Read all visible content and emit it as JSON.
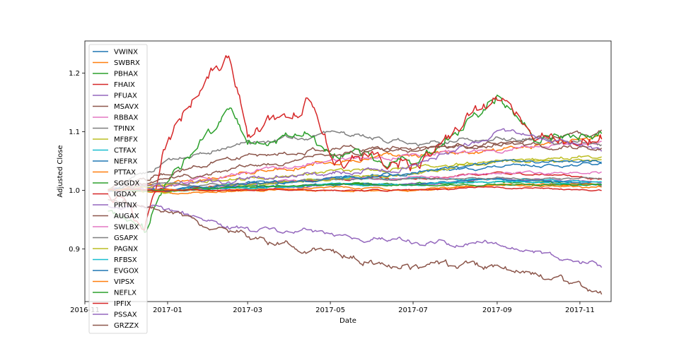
{
  "chart_data": {
    "type": "line",
    "title": "",
    "xlabel": "Date",
    "ylabel": "Adjusted Close",
    "x_start": "2016-11-18",
    "x_end": "2017-11-17",
    "x_range": [
      "2016-11-01",
      "2017-11-24"
    ],
    "ylim": [
      0.81,
      1.255
    ],
    "x_ticks": [
      {
        "date": "2016-11-01",
        "label": "2016-11"
      },
      {
        "date": "2017-01-01",
        "label": "2017-01"
      },
      {
        "date": "2017-03-01",
        "label": "2017-03"
      },
      {
        "date": "2017-05-01",
        "label": "2017-05"
      },
      {
        "date": "2017-07-01",
        "label": "2017-07"
      },
      {
        "date": "2017-09-01",
        "label": "2017-09"
      },
      {
        "date": "2017-11-01",
        "label": "2017-11"
      }
    ],
    "y_ticks": [
      0.9,
      1.0,
      1.1,
      1.2
    ],
    "y_tick_labels": [
      "0.9",
      "1.0",
      "1.1",
      "1.2"
    ],
    "grid": false,
    "legend_position": "upper-left",
    "series": [
      {
        "name": "VWINX",
        "color": "#1f77b4",
        "points": [
          [
            "2016-11-18",
            1.0
          ],
          [
            "2017-01-01",
            1.0
          ],
          [
            "2017-03-01",
            1.01
          ],
          [
            "2017-05-01",
            1.02
          ],
          [
            "2017-07-01",
            1.03
          ],
          [
            "2017-09-01",
            1.04
          ],
          [
            "2017-11-17",
            1.045
          ]
        ]
      },
      {
        "name": "SWBRX",
        "color": "#ff7f0e",
        "points": [
          [
            "2016-11-18",
            1.0
          ],
          [
            "2017-01-01",
            1.01
          ],
          [
            "2017-03-01",
            1.03
          ],
          [
            "2017-05-01",
            1.05
          ],
          [
            "2017-07-01",
            1.06
          ],
          [
            "2017-09-01",
            1.07
          ],
          [
            "2017-11-17",
            1.09
          ]
        ]
      },
      {
        "name": "PBHAX",
        "color": "#2ca02c",
        "points": [
          [
            "2016-11-18",
            1.0
          ],
          [
            "2017-01-01",
            1.0
          ],
          [
            "2017-03-01",
            1.005
          ],
          [
            "2017-05-01",
            1.01
          ],
          [
            "2017-07-01",
            1.01
          ],
          [
            "2017-09-01",
            1.015
          ],
          [
            "2017-11-17",
            1.01
          ]
        ]
      },
      {
        "name": "FHAIX",
        "color": "#d62728",
        "points": [
          [
            "2016-11-18",
            1.0
          ],
          [
            "2017-01-01",
            1.0
          ],
          [
            "2017-03-01",
            1.01
          ],
          [
            "2017-05-01",
            1.02
          ],
          [
            "2017-07-01",
            1.02
          ],
          [
            "2017-09-01",
            1.03
          ],
          [
            "2017-11-17",
            1.02
          ]
        ]
      },
      {
        "name": "PFUAX",
        "color": "#9467bd",
        "points": [
          [
            "2016-11-18",
            1.0
          ],
          [
            "2017-01-01",
            1.0
          ],
          [
            "2017-03-01",
            1.0
          ],
          [
            "2017-05-01",
            1.01
          ],
          [
            "2017-07-01",
            1.01
          ],
          [
            "2017-09-01",
            1.02
          ],
          [
            "2017-11-17",
            1.015
          ]
        ]
      },
      {
        "name": "MSAVX",
        "color": "#8c564b",
        "points": [
          [
            "2016-11-18",
            1.0
          ],
          [
            "2017-01-01",
            1.03
          ],
          [
            "2017-03-01",
            1.06
          ],
          [
            "2017-05-01",
            1.07
          ],
          [
            "2017-07-01",
            1.07
          ],
          [
            "2017-09-01",
            1.08
          ],
          [
            "2017-11-17",
            1.1
          ]
        ]
      },
      {
        "name": "RBBAX",
        "color": "#e377c2",
        "points": [
          [
            "2016-11-18",
            1.0
          ],
          [
            "2017-01-01",
            1.01
          ],
          [
            "2017-03-01",
            1.03
          ],
          [
            "2017-05-01",
            1.05
          ],
          [
            "2017-07-01",
            1.06
          ],
          [
            "2017-09-01",
            1.07
          ],
          [
            "2017-11-17",
            1.08
          ]
        ]
      },
      {
        "name": "TPINX",
        "color": "#7f7f7f",
        "points": [
          [
            "2016-11-18",
            1.0
          ],
          [
            "2017-01-01",
            1.05
          ],
          [
            "2017-03-01",
            1.08
          ],
          [
            "2017-05-01",
            1.1
          ],
          [
            "2017-07-01",
            1.08
          ],
          [
            "2017-09-01",
            1.09
          ],
          [
            "2017-11-17",
            1.08
          ]
        ]
      },
      {
        "name": "MFBFX",
        "color": "#bcbd22",
        "points": [
          [
            "2016-11-18",
            1.0
          ],
          [
            "2017-01-01",
            1.01
          ],
          [
            "2017-03-01",
            1.02
          ],
          [
            "2017-05-01",
            1.03
          ],
          [
            "2017-07-01",
            1.04
          ],
          [
            "2017-09-01",
            1.05
          ],
          [
            "2017-11-17",
            1.06
          ]
        ]
      },
      {
        "name": "CTFAX",
        "color": "#17becf",
        "points": [
          [
            "2016-11-18",
            1.0
          ],
          [
            "2017-01-01",
            1.0
          ],
          [
            "2017-03-01",
            1.01
          ],
          [
            "2017-05-01",
            1.02
          ],
          [
            "2017-07-01",
            1.02
          ],
          [
            "2017-09-01",
            1.02
          ],
          [
            "2017-11-17",
            1.015
          ]
        ]
      },
      {
        "name": "NEFRX",
        "color": "#1f77b4",
        "points": [
          [
            "2016-11-18",
            1.0
          ],
          [
            "2017-01-01",
            1.0
          ],
          [
            "2017-03-01",
            1.005
          ],
          [
            "2017-05-01",
            1.01
          ],
          [
            "2017-07-01",
            1.01
          ],
          [
            "2017-09-01",
            1.02
          ],
          [
            "2017-11-17",
            1.01
          ]
        ]
      },
      {
        "name": "PTTAX",
        "color": "#ff7f0e",
        "points": [
          [
            "2016-11-18",
            1.0
          ],
          [
            "2017-01-01",
            0.995
          ],
          [
            "2017-03-01",
            1.0
          ],
          [
            "2017-05-01",
            1.005
          ],
          [
            "2017-07-01",
            1.0
          ],
          [
            "2017-09-01",
            1.01
          ],
          [
            "2017-11-17",
            1.005
          ]
        ]
      },
      {
        "name": "SGGDX",
        "color": "#2ca02c",
        "points": [
          [
            "2016-11-18",
            0.97
          ],
          [
            "2016-12-15",
            0.93
          ],
          [
            "2017-01-01",
            1.02
          ],
          [
            "2017-02-01",
            1.1
          ],
          [
            "2017-02-15",
            1.14
          ],
          [
            "2017-03-01",
            1.08
          ],
          [
            "2017-04-15",
            1.1
          ],
          [
            "2017-05-01",
            1.06
          ],
          [
            "2017-07-01",
            1.05
          ],
          [
            "2017-09-01",
            1.16
          ],
          [
            "2017-10-01",
            1.09
          ],
          [
            "2017-11-17",
            1.1
          ]
        ]
      },
      {
        "name": "IGDAX",
        "color": "#d62728",
        "points": [
          [
            "2016-11-18",
            1.0
          ],
          [
            "2016-12-15",
            0.93
          ],
          [
            "2017-01-01",
            1.09
          ],
          [
            "2017-02-01",
            1.2
          ],
          [
            "2017-02-15",
            1.24
          ],
          [
            "2017-03-01",
            1.1
          ],
          [
            "2017-04-15",
            1.15
          ],
          [
            "2017-05-01",
            1.06
          ],
          [
            "2017-07-01",
            1.05
          ],
          [
            "2017-09-01",
            1.15
          ],
          [
            "2017-10-01",
            1.09
          ],
          [
            "2017-11-17",
            1.09
          ]
        ]
      },
      {
        "name": "PRTNX",
        "color": "#9467bd",
        "points": [
          [
            "2016-11-18",
            1.0
          ],
          [
            "2017-01-01",
            1.01
          ],
          [
            "2017-03-01",
            1.02
          ],
          [
            "2017-05-01",
            1.03
          ],
          [
            "2017-07-01",
            1.04
          ],
          [
            "2017-09-01",
            1.1
          ],
          [
            "2017-11-17",
            1.07
          ]
        ]
      },
      {
        "name": "AUGAX",
        "color": "#8c564b",
        "points": [
          [
            "2016-11-18",
            1.0
          ],
          [
            "2017-01-01",
            1.02
          ],
          [
            "2017-03-01",
            1.04
          ],
          [
            "2017-05-01",
            1.06
          ],
          [
            "2017-07-01",
            1.07
          ],
          [
            "2017-09-01",
            1.08
          ],
          [
            "2017-11-17",
            1.07
          ]
        ]
      },
      {
        "name": "SWLBX",
        "color": "#e377c2",
        "points": [
          [
            "2016-11-18",
            1.0
          ],
          [
            "2017-01-01",
            1.0
          ],
          [
            "2017-03-01",
            1.01
          ],
          [
            "2017-05-01",
            1.02
          ],
          [
            "2017-07-01",
            1.02
          ],
          [
            "2017-09-01",
            1.03
          ],
          [
            "2017-11-17",
            1.03
          ]
        ]
      },
      {
        "name": "GSAPX",
        "color": "#7f7f7f",
        "points": [
          [
            "2016-11-18",
            1.0
          ],
          [
            "2017-01-01",
            1.01
          ],
          [
            "2017-03-01",
            1.01
          ],
          [
            "2017-05-01",
            1.02
          ],
          [
            "2017-07-01",
            1.02
          ],
          [
            "2017-09-01",
            1.02
          ],
          [
            "2017-11-17",
            1.02
          ]
        ]
      },
      {
        "name": "PAGNX",
        "color": "#bcbd22",
        "points": [
          [
            "2016-11-18",
            1.0
          ],
          [
            "2017-01-01",
            1.0
          ],
          [
            "2017-03-01",
            1.01
          ],
          [
            "2017-05-01",
            1.02
          ],
          [
            "2017-07-01",
            1.03
          ],
          [
            "2017-09-01",
            1.05
          ],
          [
            "2017-11-17",
            1.05
          ]
        ]
      },
      {
        "name": "RFBSX",
        "color": "#17becf",
        "points": [
          [
            "2016-11-18",
            1.0
          ],
          [
            "2017-01-01",
            1.0
          ],
          [
            "2017-03-01",
            1.005
          ],
          [
            "2017-05-01",
            1.01
          ],
          [
            "2017-07-01",
            1.01
          ],
          [
            "2017-09-01",
            1.015
          ],
          [
            "2017-11-17",
            1.01
          ]
        ]
      },
      {
        "name": "EVGOX",
        "color": "#1f77b4",
        "points": [
          [
            "2016-11-18",
            1.0
          ],
          [
            "2017-01-01",
            1.0
          ],
          [
            "2017-03-01",
            1.01
          ],
          [
            "2017-05-01",
            1.02
          ],
          [
            "2017-07-01",
            1.03
          ],
          [
            "2017-09-01",
            1.05
          ],
          [
            "2017-11-17",
            1.05
          ]
        ]
      },
      {
        "name": "VIPSX",
        "color": "#ff7f0e",
        "points": [
          [
            "2016-11-18",
            1.0
          ],
          [
            "2017-01-01",
            1.0
          ],
          [
            "2017-03-01",
            1.0
          ],
          [
            "2017-05-01",
            1.0
          ],
          [
            "2017-07-01",
            1.0
          ],
          [
            "2017-09-01",
            1.01
          ],
          [
            "2017-11-17",
            1.01
          ]
        ]
      },
      {
        "name": "NEFLX",
        "color": "#2ca02c",
        "points": [
          [
            "2016-11-18",
            1.0
          ],
          [
            "2017-01-01",
            1.0
          ],
          [
            "2017-03-01",
            1.005
          ],
          [
            "2017-05-01",
            1.01
          ],
          [
            "2017-07-01",
            1.01
          ],
          [
            "2017-09-01",
            1.01
          ],
          [
            "2017-11-17",
            1.01
          ]
        ]
      },
      {
        "name": "IPFIX",
        "color": "#d62728",
        "points": [
          [
            "2016-11-18",
            1.0
          ],
          [
            "2017-01-01",
            1.0
          ],
          [
            "2017-03-01",
            1.0
          ],
          [
            "2017-05-01",
            1.0
          ],
          [
            "2017-07-01",
            1.0
          ],
          [
            "2017-09-01",
            1.005
          ],
          [
            "2017-11-17",
            1.0
          ]
        ]
      },
      {
        "name": "PSSAX",
        "color": "#9467bd",
        "points": [
          [
            "2016-11-18",
            0.97
          ],
          [
            "2017-01-01",
            0.965
          ],
          [
            "2017-03-01",
            0.93
          ],
          [
            "2017-05-01",
            0.93
          ],
          [
            "2017-07-01",
            0.91
          ],
          [
            "2017-09-01",
            0.91
          ],
          [
            "2017-11-17",
            0.87
          ]
        ]
      },
      {
        "name": "GRZZX",
        "color": "#8c564b",
        "points": [
          [
            "2016-11-18",
            0.98
          ],
          [
            "2017-01-01",
            0.96
          ],
          [
            "2017-03-01",
            0.92
          ],
          [
            "2017-05-01",
            0.89
          ],
          [
            "2017-07-01",
            0.87
          ],
          [
            "2017-09-01",
            0.87
          ],
          [
            "2017-11-17",
            0.825
          ]
        ]
      }
    ]
  }
}
